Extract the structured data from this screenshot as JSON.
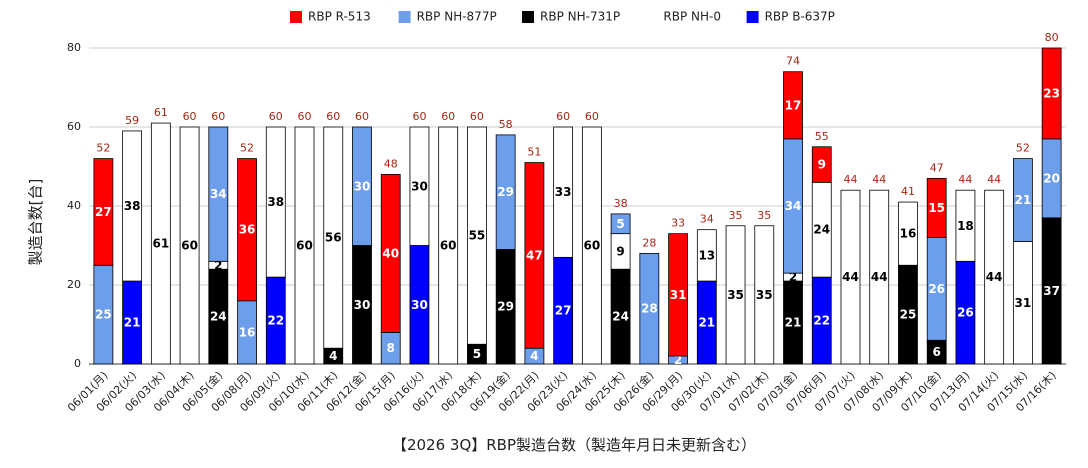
{
  "chart_data": {
    "type": "bar",
    "stacked": true,
    "title": "【2026 3Q】RBP製造台数（製造年月日未更新含む）",
    "ylabel": "製造台数[台]",
    "ylim": [
      0,
      80
    ],
    "yticks": [
      0,
      20,
      40,
      60,
      80
    ],
    "grid": true,
    "legend_position": "top",
    "categories": [
      "06/01(月)",
      "06/02(火)",
      "06/03(水)",
      "06/04(木)",
      "06/05(金)",
      "06/08(月)",
      "06/09(火)",
      "06/10(水)",
      "06/11(木)",
      "06/12(金)",
      "06/15(月)",
      "06/16(火)",
      "06/17(水)",
      "06/18(木)",
      "06/19(金)",
      "06/22(月)",
      "06/23(火)",
      "06/24(水)",
      "06/25(木)",
      "06/26(金)",
      "06/29(月)",
      "06/30(火)",
      "07/01(水)",
      "07/02(木)",
      "07/03(金)",
      "07/06(月)",
      "07/07(火)",
      "07/08(水)",
      "07/09(木)",
      "07/10(金)",
      "07/13(月)",
      "07/14(火)",
      "07/15(水)",
      "07/16(木)"
    ],
    "series": [
      {
        "name": "RBP R-513",
        "color": "#ff0000",
        "text_color": "#ffffff",
        "values": [
          27,
          0,
          0,
          0,
          0,
          36,
          0,
          0,
          0,
          0,
          40,
          0,
          0,
          0,
          0,
          47,
          0,
          0,
          0,
          0,
          31,
          0,
          0,
          0,
          17,
          9,
          0,
          0,
          0,
          15,
          0,
          0,
          0,
          23
        ]
      },
      {
        "name": "RBP NH-877P",
        "color": "#6d9eeb",
        "text_color": "#ffffff",
        "values": [
          25,
          0,
          0,
          0,
          34,
          16,
          0,
          0,
          0,
          30,
          8,
          0,
          0,
          0,
          29,
          4,
          0,
          0,
          5,
          28,
          2,
          0,
          0,
          0,
          34,
          0,
          0,
          0,
          0,
          26,
          0,
          0,
          21,
          20
        ]
      },
      {
        "name": "RBP NH-731P",
        "color": "#000000",
        "text_color": "#ffffff",
        "values": [
          0,
          0,
          0,
          0,
          24,
          0,
          0,
          0,
          4,
          30,
          0,
          0,
          0,
          5,
          29,
          0,
          0,
          0,
          24,
          0,
          0,
          0,
          0,
          0,
          21,
          0,
          0,
          0,
          25,
          6,
          0,
          0,
          0,
          37
        ]
      },
      {
        "name": "RBP NH-0",
        "color": "#ffffff",
        "text_color": "#000000",
        "values": [
          0,
          38,
          61,
          60,
          2,
          0,
          38,
          60,
          56,
          0,
          0,
          30,
          60,
          55,
          0,
          0,
          33,
          60,
          9,
          0,
          0,
          13,
          35,
          35,
          2,
          24,
          44,
          44,
          16,
          0,
          18,
          44,
          31,
          0
        ]
      },
      {
        "name": "RBP B-637P",
        "color": "#0000ff",
        "text_color": "#ffffff",
        "values": [
          0,
          21,
          0,
          0,
          0,
          0,
          22,
          0,
          0,
          0,
          0,
          30,
          0,
          0,
          0,
          0,
          27,
          0,
          0,
          0,
          0,
          21,
          0,
          0,
          0,
          22,
          0,
          0,
          0,
          0,
          26,
          0,
          0,
          0
        ]
      }
    ],
    "stack_order": [
      "RBP NH-731P",
      "RBP B-637P",
      "RBP NH-0",
      "RBP NH-877P",
      "RBP R-513"
    ],
    "totals": [
      52,
      59,
      61,
      60,
      60,
      52,
      60,
      60,
      60,
      60,
      48,
      60,
      60,
      60,
      58,
      51,
      60,
      60,
      38,
      28,
      33,
      34,
      35,
      35,
      74,
      55,
      44,
      44,
      41,
      47,
      44,
      44,
      52,
      80
    ]
  }
}
